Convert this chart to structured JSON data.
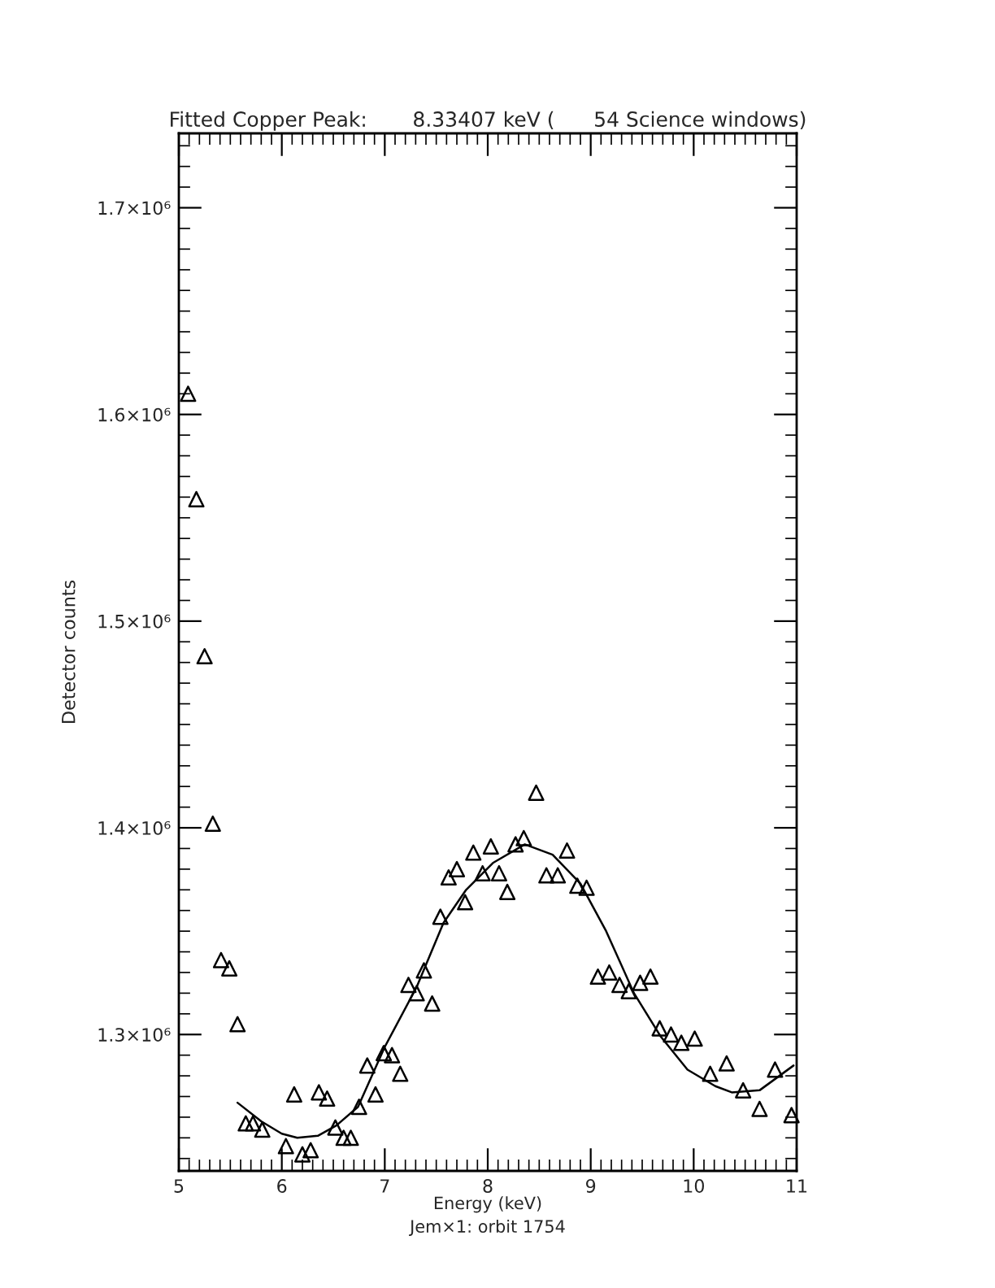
{
  "chart_data": {
    "type": "scatter",
    "title": "Fitted Copper Peak:       8.33407 keV (      54 Science windows)",
    "xlabel": "Energy (keV)",
    "ylabel": "Detector counts",
    "annotations": [
      "Jem×1: orbit 1754"
    ],
    "xlim": [
      5,
      11
    ],
    "ylim": [
      1234000,
      1736000
    ],
    "xticks": [
      5,
      6,
      7,
      8,
      9,
      10,
      11
    ],
    "yticks": [
      {
        "value": 1300000,
        "label": "1.3×10⁶"
      },
      {
        "value": 1400000,
        "label": "1.4×10⁶"
      },
      {
        "value": 1500000,
        "label": "1.5×10⁶"
      },
      {
        "value": 1600000,
        "label": "1.6×10⁶"
      },
      {
        "value": 1700000,
        "label": "1.7×10⁶"
      }
    ],
    "grid": false,
    "legend": false,
    "series": [
      {
        "marker": "triangle",
        "color": "#000000",
        "x": [
          5.09,
          5.17,
          5.25,
          5.33,
          5.41,
          5.49,
          5.57,
          5.65,
          5.72,
          5.81,
          6.04,
          6.12,
          6.2,
          6.28,
          6.36,
          6.44,
          6.52,
          6.6,
          6.67,
          6.75,
          6.83,
          6.91,
          6.99,
          7.07,
          7.15,
          7.23,
          7.31,
          7.38,
          7.46,
          7.54,
          7.62,
          7.7,
          7.78,
          7.86,
          7.95,
          8.03,
          8.11,
          8.19,
          8.27,
          8.35,
          8.47,
          8.57,
          8.68,
          8.77,
          8.87,
          8.96,
          9.07,
          9.18,
          9.28,
          9.37,
          9.48,
          9.58,
          9.67,
          9.78,
          9.88,
          10.01,
          10.16,
          10.32,
          10.48,
          10.64,
          10.79,
          10.95
        ],
        "values": [
          1610000,
          1559000,
          1483000,
          1402000,
          1336000,
          1332000,
          1305000,
          1257000,
          1257000,
          1254000,
          1246000,
          1271000,
          1242000,
          1244000,
          1272000,
          1269000,
          1255000,
          1250000,
          1250000,
          1265000,
          1285000,
          1271000,
          1291000,
          1290000,
          1281000,
          1324000,
          1320000,
          1331000,
          1315000,
          1357000,
          1376000,
          1380000,
          1364000,
          1388000,
          1378000,
          1391000,
          1378000,
          1369000,
          1392000,
          1395000,
          1417000,
          1377000,
          1377000,
          1389000,
          1372000,
          1371000,
          1328000,
          1330000,
          1324000,
          1321000,
          1325000,
          1328000,
          1303000,
          1300000,
          1296000,
          1298000,
          1281000,
          1286000,
          1273000,
          1264000,
          1283000,
          1261000
        ]
      },
      {
        "type": "line",
        "marker": "none",
        "line_style": "solid",
        "color": "#000000",
        "x": [
          5.57,
          5.8,
          6.0,
          6.15,
          6.35,
          6.53,
          6.74,
          7.0,
          7.31,
          7.57,
          7.79,
          8.05,
          8.36,
          8.63,
          8.9,
          9.15,
          9.42,
          9.68,
          9.94,
          10.21,
          10.37,
          10.64,
          10.97
        ],
        "values": [
          1267000,
          1258000,
          1252000,
          1250000,
          1251000,
          1256000,
          1265000,
          1294000,
          1323000,
          1354000,
          1370000,
          1383000,
          1392000,
          1387000,
          1373000,
          1350000,
          1320000,
          1299000,
          1283000,
          1275000,
          1272000,
          1273000,
          1285000
        ]
      }
    ]
  }
}
